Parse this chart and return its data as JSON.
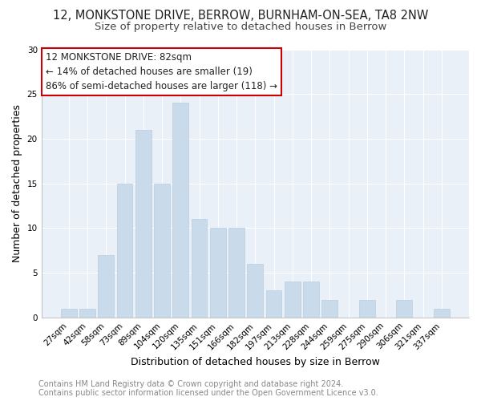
{
  "title_line1": "12, MONKSTONE DRIVE, BERROW, BURNHAM-ON-SEA, TA8 2NW",
  "title_line2": "Size of property relative to detached houses in Berrow",
  "xlabel": "Distribution of detached houses by size in Berrow",
  "ylabel": "Number of detached properties",
  "bar_labels": [
    "27sqm",
    "42sqm",
    "58sqm",
    "73sqm",
    "89sqm",
    "104sqm",
    "120sqm",
    "135sqm",
    "151sqm",
    "166sqm",
    "182sqm",
    "197sqm",
    "213sqm",
    "228sqm",
    "244sqm",
    "259sqm",
    "275sqm",
    "290sqm",
    "306sqm",
    "321sqm",
    "337sqm"
  ],
  "bar_values": [
    1,
    1,
    7,
    15,
    21,
    15,
    24,
    11,
    10,
    10,
    6,
    3,
    4,
    4,
    2,
    0,
    2,
    0,
    2,
    0,
    1
  ],
  "bar_color": "#c9daea",
  "bar_edge_color": "#b8cede",
  "ylim": [
    0,
    30
  ],
  "yticks": [
    0,
    5,
    10,
    15,
    20,
    25,
    30
  ],
  "annotation_title": "12 MONKSTONE DRIVE: 82sqm",
  "annotation_line1": "← 14% of detached houses are smaller (19)",
  "annotation_line2": "86% of semi-detached houses are larger (118) →",
  "annotation_box_color": "#ffffff",
  "annotation_border_color": "#cc0000",
  "footer_line1": "Contains HM Land Registry data © Crown copyright and database right 2024.",
  "footer_line2": "Contains public sector information licensed under the Open Government Licence v3.0.",
  "bg_color": "#ffffff",
  "plot_bg_color": "#eaf0f8",
  "grid_color": "#ffffff",
  "title_fontsize": 10.5,
  "subtitle_fontsize": 9.5,
  "axis_label_fontsize": 9,
  "tick_fontsize": 7.5,
  "footer_fontsize": 7,
  "annotation_fontsize": 8.5
}
